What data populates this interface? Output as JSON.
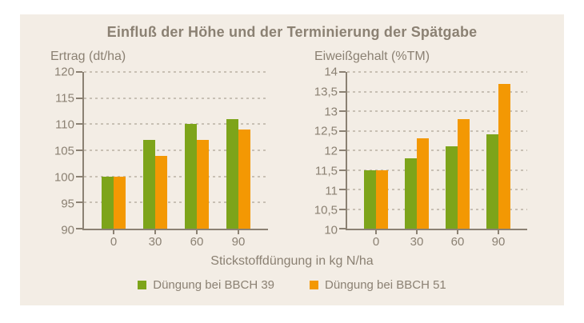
{
  "title": "Einfluß der Höhe und der Terminierung der Spätgabe",
  "xlabel": "Stickstoffdüngung in kg N/ha",
  "colors": {
    "bbch39_green": "#7DA41A",
    "bbch51_orange": "#F39803",
    "text_gray_brown": "#8B8173",
    "panel_beige": "#F3EDE5"
  },
  "legend": [
    {
      "label": "Düngung bei BBCH 39",
      "color": "#7DA41A"
    },
    {
      "label": "Düngung bei BBCH 51",
      "color": "#F39803"
    }
  ],
  "chart_data": [
    {
      "type": "bar",
      "title": "Ertrag (dt/ha)",
      "categories": [
        "0",
        "30",
        "60",
        "90"
      ],
      "series": [
        {
          "name": "Düngung bei BBCH 39",
          "color": "#7DA41A",
          "values": [
            100,
            107,
            110,
            111
          ]
        },
        {
          "name": "Düngung bei BBCH 51",
          "color": "#F39803",
          "values": [
            100,
            104,
            107,
            109
          ]
        }
      ],
      "ylim": [
        90,
        120
      ],
      "ytick_labels": [
        "90",
        "95",
        "100",
        "105",
        "110",
        "115",
        "120"
      ],
      "grid": "horizontal-dashed",
      "legend_position": "bottom"
    },
    {
      "type": "bar",
      "title": "Eiweißgehalt (%TM)",
      "categories": [
        "0",
        "30",
        "60",
        "90"
      ],
      "series": [
        {
          "name": "Düngung bei BBCH 39",
          "color": "#7DA41A",
          "values": [
            11.5,
            11.8,
            12.1,
            12.4
          ]
        },
        {
          "name": "Düngung bei BBCH 51",
          "color": "#F39803",
          "values": [
            11.5,
            12.3,
            12.8,
            13.7
          ]
        }
      ],
      "ylim": [
        10,
        14
      ],
      "ytick_labels": [
        "10",
        "10,5",
        "11",
        "11,5",
        "12",
        "12,5",
        "13",
        "13,5",
        "14"
      ],
      "grid": "horizontal-dashed",
      "legend_position": "bottom"
    }
  ]
}
